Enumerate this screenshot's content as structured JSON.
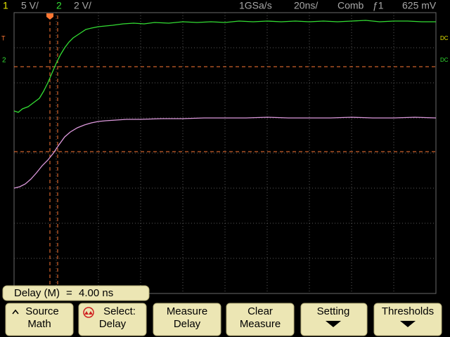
{
  "header": {
    "ch1_number": "1",
    "ch1_scale": "5 V/",
    "ch2_number": "2",
    "ch2_scale": "2 V/",
    "sample_rate": "1GSa/s",
    "timebase": "20ns/",
    "acquisition": "Comb",
    "trigger": "ƒ1",
    "trigger_level": "625 mV"
  },
  "markers": {
    "trigger_left": "T",
    "ch2_left": "2",
    "ch1_right": "DC",
    "ch2_right": "DC"
  },
  "readout": {
    "label": "Delay (M)",
    "equals": "=",
    "value": "4.00 ns"
  },
  "softkeys": [
    {
      "line1": "Source",
      "line2": "Math"
    },
    {
      "line1": "Select:",
      "line2": "Delay"
    },
    {
      "line1": "Measure",
      "line2": "Delay"
    },
    {
      "line1": "Clear",
      "line2": "Measure"
    },
    {
      "line1": "Setting"
    },
    {
      "line1": "Thresholds"
    }
  ]
}
